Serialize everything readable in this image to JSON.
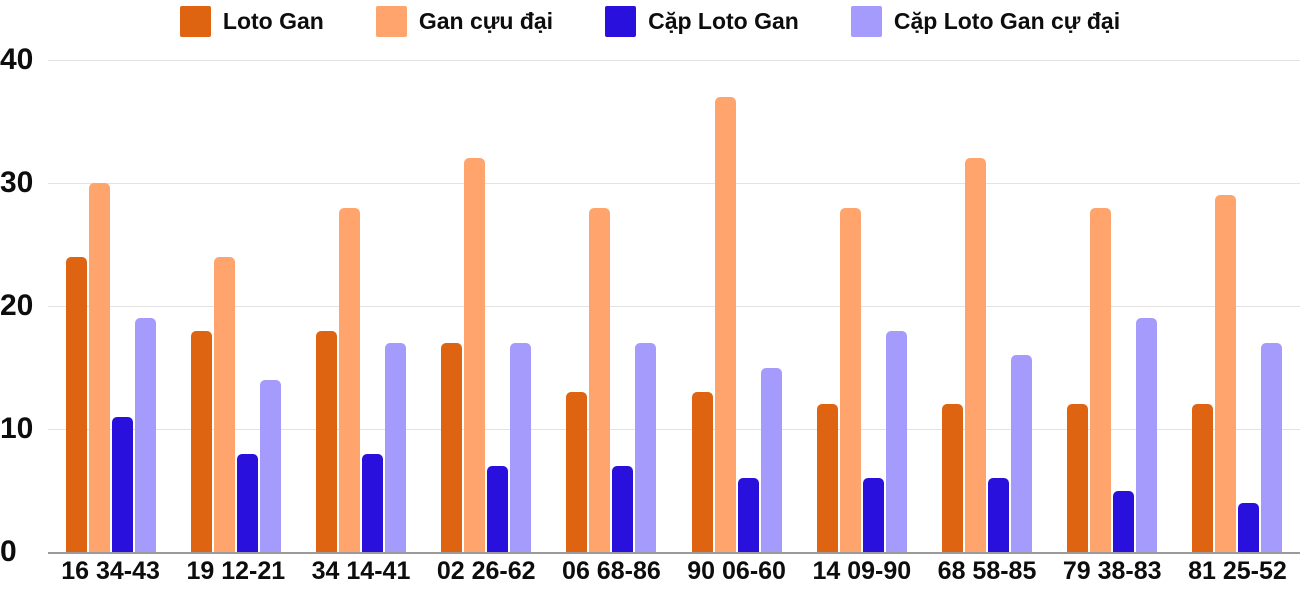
{
  "colors": {
    "background": "#ffffff",
    "grid": "#e3e3e3",
    "axis": "#9a9a9a",
    "text": "#0d0d0d"
  },
  "chart_data": {
    "type": "bar",
    "title": "",
    "xlabel": "",
    "ylabel": "",
    "ylim": [
      0,
      40
    ],
    "yticks": [
      0,
      10,
      20,
      30,
      40
    ],
    "grid": true,
    "legend_position": "top",
    "categories": [
      "16 34-43",
      "19 12-21",
      "34 14-41",
      "02 26-62",
      "06 68-86",
      "90 06-60",
      "14 09-90",
      "68 58-85",
      "79 38-83",
      "81 25-52"
    ],
    "series": [
      {
        "name": "Loto Gan",
        "color": "#df6411",
        "values": [
          24,
          18,
          18,
          17,
          13,
          13,
          12,
          12,
          12,
          12
        ]
      },
      {
        "name": "Gan cựu đại",
        "color": "#ffa46c",
        "values": [
          30,
          24,
          28,
          32,
          28,
          37,
          28,
          32,
          28,
          29
        ]
      },
      {
        "name": "Cặp Loto Gan",
        "color": "#2a10dc",
        "values": [
          11,
          8,
          8,
          7,
          7,
          6,
          6,
          6,
          5,
          4
        ]
      },
      {
        "name": "Cặp Loto Gan cự đại",
        "color": "#a49bfc",
        "values": [
          19,
          14,
          17,
          17,
          17,
          15,
          18,
          16,
          19,
          17
        ]
      }
    ]
  }
}
